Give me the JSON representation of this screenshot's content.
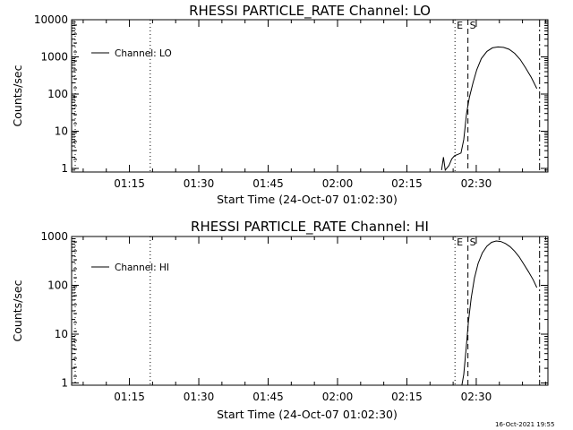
{
  "footer": {
    "timestamp": "16-Oct-2021 19:55"
  },
  "chart_data": [
    {
      "type": "line",
      "title": "RHESSI PARTICLE_RATE Channel: LO",
      "xlabel": "Start Time (24-Oct-07 01:02:30)",
      "ylabel": "Counts/sec",
      "y_scale": "log",
      "xlim_minutes": [
        0,
        103
      ],
      "ylim": [
        0.8,
        10000
      ],
      "x_tick_labels": [
        "01:15",
        "01:30",
        "01:45",
        "02:00",
        "02:15",
        "02:30"
      ],
      "x_tick_minutes": [
        12.5,
        27.5,
        42.5,
        57.5,
        72.5,
        87.5
      ],
      "y_tick_labels": [
        "1",
        "10",
        "100",
        "1000",
        "10000"
      ],
      "y_tick_values": [
        1,
        10,
        100,
        1000,
        10000
      ],
      "legend": {
        "placement": "top-left",
        "entries": [
          "Channel: LO"
        ]
      },
      "markers": [
        {
          "label": "E",
          "x_minute": 82.9,
          "style": "dotted"
        },
        {
          "label": "S",
          "x_minute": 85.7,
          "style": "dashed"
        },
        {
          "style": "dotted",
          "x_minute": 17.0
        },
        {
          "style": "dash-dot",
          "x_minute": 101.2
        }
      ],
      "series": [
        {
          "name": "Channel: LO",
          "points": [
            [
              80.0,
              0.9
            ],
            [
              80.4,
              2.0
            ],
            [
              80.8,
              0.9
            ],
            [
              81.6,
              1.2
            ],
            [
              82.2,
              1.8
            ],
            [
              82.8,
              2.2
            ],
            [
              83.6,
              2.4
            ],
            [
              84.2,
              2.6
            ],
            [
              84.8,
              6
            ],
            [
              85.4,
              30
            ],
            [
              86.0,
              80
            ],
            [
              86.8,
              200
            ],
            [
              87.6,
              450
            ],
            [
              88.6,
              900
            ],
            [
              89.8,
              1400
            ],
            [
              91.0,
              1750
            ],
            [
              92.2,
              1850
            ],
            [
              93.4,
              1800
            ],
            [
              94.6,
              1600
            ],
            [
              95.8,
              1250
            ],
            [
              97.0,
              850
            ],
            [
              98.2,
              500
            ],
            [
              99.4,
              280
            ],
            [
              100.6,
              140
            ]
          ]
        }
      ]
    },
    {
      "type": "line",
      "title": "RHESSI PARTICLE_RATE Channel: HI",
      "xlabel": "Start Time (24-Oct-07 01:02:30)",
      "ylabel": "Counts/sec",
      "y_scale": "log",
      "xlim_minutes": [
        0,
        103
      ],
      "ylim": [
        0.9,
        1000
      ],
      "x_tick_labels": [
        "01:15",
        "01:30",
        "01:45",
        "02:00",
        "02:15",
        "02:30"
      ],
      "x_tick_minutes": [
        12.5,
        27.5,
        42.5,
        57.5,
        72.5,
        87.5
      ],
      "y_tick_labels": [
        "1",
        "10",
        "100",
        "1000"
      ],
      "y_tick_values": [
        1,
        10,
        100,
        1000
      ],
      "legend": {
        "placement": "top-left",
        "entries": [
          "Channel: HI"
        ]
      },
      "markers": [
        {
          "label": "E",
          "x_minute": 82.9,
          "style": "dotted"
        },
        {
          "label": "S",
          "x_minute": 85.7,
          "style": "dashed"
        },
        {
          "style": "dotted",
          "x_minute": 17.0
        },
        {
          "style": "dash-dot",
          "x_minute": 101.2
        }
      ],
      "series": [
        {
          "name": "Channel: HI",
          "points": [
            [
              84.4,
              0.9
            ],
            [
              84.8,
              1.5
            ],
            [
              85.3,
              5
            ],
            [
              85.8,
              18
            ],
            [
              86.4,
              55
            ],
            [
              87.1,
              140
            ],
            [
              87.9,
              280
            ],
            [
              88.8,
              460
            ],
            [
              89.8,
              630
            ],
            [
              90.8,
              760
            ],
            [
              91.8,
              810
            ],
            [
              92.8,
              790
            ],
            [
              93.8,
              720
            ],
            [
              94.8,
              620
            ],
            [
              95.8,
              500
            ],
            [
              96.8,
              380
            ],
            [
              97.8,
              270
            ],
            [
              98.8,
              190
            ],
            [
              99.8,
              130
            ],
            [
              100.6,
              90
            ]
          ]
        }
      ]
    }
  ]
}
